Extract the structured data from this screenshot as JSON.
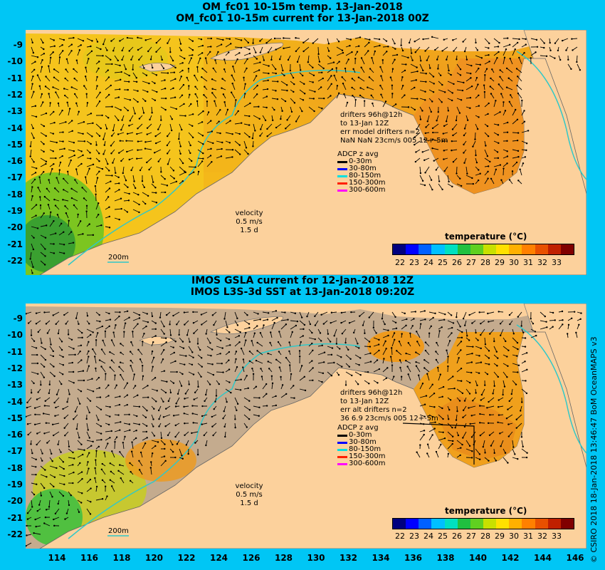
{
  "top_panel": {
    "title_line1": "OM_fc01 10-15m temp. 13-Jan-2018",
    "title_line2": "OM_fc01 10-15m current for 13-Jan-2018 00Z",
    "drifters": [
      "drifters 96h@12h",
      "to 13-Jan 12Z",
      "err model drifters n=2",
      "NaN NaN 23cm/s 005 12+-5m"
    ],
    "velocity_label": [
      "velocity",
      "0.5 m/s",
      "1.5 d"
    ],
    "contour_label": "200m",
    "colorbar_title": "temperature (°C)"
  },
  "bottom_panel": {
    "title_line1": "IMOS GSLA current for 12-Jan-2018 12Z",
    "title_line2": "IMOS L3S-3d SST at 13-Jan-2018 09:20Z",
    "drifters": [
      "drifters 96h@12h",
      "to 13-Jan 12Z",
      "err alt drifters n=2",
      "36 6.9 23cm/s 005 12+-5m"
    ],
    "velocity_label": [
      "velocity",
      "0.5 m/s",
      "1.5 d"
    ],
    "contour_label": "200m",
    "colorbar_title": "temperature (°C)"
  },
  "adcp_legend": {
    "title": "ADCP z avg",
    "items": [
      {
        "label": "0-30m",
        "color": "#000000"
      },
      {
        "label": "30-80m",
        "color": "#0000ff"
      },
      {
        "label": "80-150m",
        "color": "#00e0e0"
      },
      {
        "label": "150-300m",
        "color": "#ff2000"
      },
      {
        "label": "300-600m",
        "color": "#ff00ff"
      }
    ]
  },
  "latitude_labels": [
    "-9",
    "-10",
    "-11",
    "-12",
    "-13",
    "-14",
    "-15",
    "-16",
    "-17",
    "-18",
    "-19",
    "-20",
    "-21",
    "-22"
  ],
  "longitude_labels": [
    "114",
    "116",
    "118",
    "120",
    "122",
    "124",
    "126",
    "128",
    "130",
    "132",
    "134",
    "136",
    "138",
    "140",
    "142",
    "144",
    "146"
  ],
  "colorbar_ticks": [
    "22",
    "23",
    "24",
    "25",
    "26",
    "27",
    "28",
    "29",
    "30",
    "31",
    "32",
    "33"
  ],
  "colorbar_colors": [
    "#00007f",
    "#0000ff",
    "#0060ff",
    "#00c0ff",
    "#00e0c0",
    "#20c040",
    "#60d020",
    "#c8e000",
    "#ffe000",
    "#ffb000",
    "#ff8000",
    "#e85000",
    "#c02000",
    "#800000"
  ],
  "colors": {
    "background": "#00c6f5",
    "land": "#fcd19c",
    "warm_sea": "#f0a020",
    "mid_sea": "#f5c21a",
    "cool_sea": "#70cc20",
    "no_data": "#c4ab8e"
  },
  "copyright": "© CSIRO 2018   18-Jan-2018 13:46:47 BoM OceanMAPS v3"
}
